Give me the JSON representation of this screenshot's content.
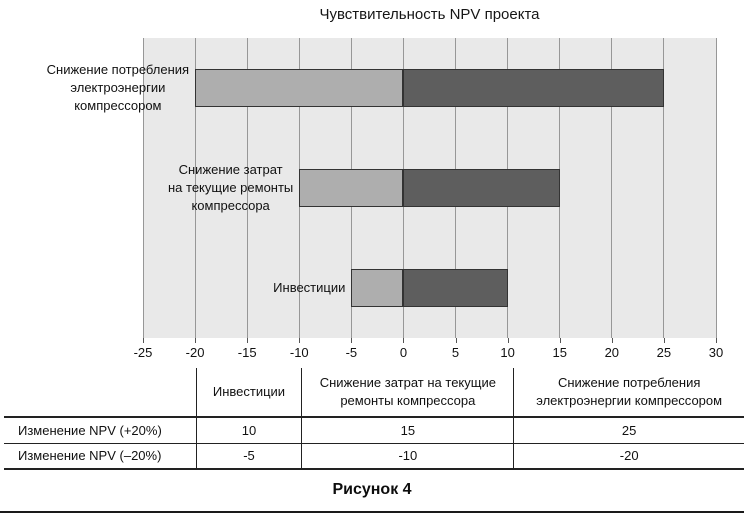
{
  "title": "Чувствительность NPV проекта",
  "caption": "Рисунок 4",
  "chart_data": {
    "type": "bar",
    "orientation": "horizontal",
    "title": "Чувствительность NPV проекта",
    "categories": [
      "Снижение потребления\nэлектроэнергии\nкомпрессором",
      "Снижение затрат\nна текущие ремонты\nкомпрессора",
      "Инвестиции"
    ],
    "series": [
      {
        "name": "Изменение NPV (–20%)",
        "values": [
          -20,
          -10,
          -5
        ],
        "color": "#aeaeae"
      },
      {
        "name": "Изменение NPV (+20%)",
        "values": [
          25,
          15,
          10
        ],
        "color": "#5e5e5e"
      }
    ],
    "xlim": [
      -25,
      30
    ],
    "x_ticks": [
      -25,
      -20,
      -15,
      -10,
      -5,
      0,
      5,
      10,
      15,
      20,
      25,
      30
    ],
    "grid": true,
    "legend": "none",
    "plot_bg_color": "#e9e9e9",
    "grid_color": "#979797",
    "bar_border_color": "#333333"
  },
  "table": {
    "columns": [
      "",
      "Инвестиции",
      "Снижение затрат на текущие ремонты компрессора",
      "Снижение потребления электроэнергии компрессором"
    ],
    "rows": [
      {
        "label": "Изменение NPV (+20%)",
        "values": [
          "10",
          "15",
          "25"
        ]
      },
      {
        "label": "Изменение NPV (–20%)",
        "values": [
          "-5",
          "-10",
          "-20"
        ]
      }
    ]
  }
}
